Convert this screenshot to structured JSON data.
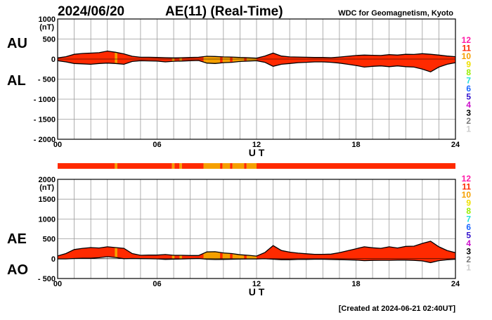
{
  "header": {
    "date": "2024/06/20",
    "title": "AE(11) (Real-Time)",
    "source": "WDC for Geomagnetism, Kyoto"
  },
  "footer": {
    "created": "[Created at 2024-06-21 02:40UT]"
  },
  "colors": {
    "fill": "#ff2a00",
    "fill_warn": "#f5a000",
    "line": "#000000"
  },
  "legend": {
    "items": [
      {
        "label": "12",
        "color": "#ff1aa8"
      },
      {
        "label": "11",
        "color": "#ff2a00"
      },
      {
        "label": "10",
        "color": "#f5a000"
      },
      {
        "label": "9",
        "color": "#f0e000"
      },
      {
        "label": "8",
        "color": "#99ee00"
      },
      {
        "label": "7",
        "color": "#22dddd"
      },
      {
        "label": "6",
        "color": "#1a66ff"
      },
      {
        "label": "5",
        "color": "#3311cc"
      },
      {
        "label": "4",
        "color": "#cc11cc"
      },
      {
        "label": "3",
        "color": "#000000"
      },
      {
        "label": "2",
        "color": "#777777"
      },
      {
        "label": "1",
        "color": "#cccccc"
      }
    ]
  },
  "chart_data": [
    {
      "type": "area",
      "upper_label": "AU",
      "lower_label": "AL",
      "unit": "(nT)",
      "xlabel": "U T",
      "xlim": [
        0,
        24
      ],
      "ylim": [
        -2000,
        1000
      ],
      "xticks": [
        "00",
        "06",
        "12",
        "18",
        "24"
      ],
      "yticks": [
        "1000",
        "500",
        "0",
        "- 500",
        "- 1000",
        "- 1500",
        "- 2000"
      ],
      "x": [
        0,
        0.5,
        1,
        1.5,
        2,
        2.5,
        3,
        3.5,
        4,
        4.5,
        5,
        5.5,
        6,
        6.5,
        7,
        7.5,
        8,
        8.5,
        9,
        9.5,
        10,
        10.5,
        11,
        11.5,
        12,
        12.5,
        13,
        13.5,
        14,
        14.5,
        15,
        15.5,
        16,
        16.5,
        17,
        17.5,
        18,
        18.5,
        19,
        19.5,
        20,
        20.5,
        21,
        21.5,
        22,
        22.5,
        23,
        23.5,
        24
      ],
      "series": [
        {
          "name": "AU",
          "values": [
            30,
            60,
            120,
            140,
            150,
            160,
            200,
            170,
            130,
            70,
            45,
            45,
            40,
            35,
            30,
            35,
            40,
            45,
            70,
            65,
            55,
            50,
            40,
            35,
            25,
            75,
            150,
            75,
            55,
            50,
            45,
            40,
            40,
            35,
            50,
            70,
            90,
            100,
            95,
            90,
            110,
            100,
            120,
            115,
            135,
            120,
            100,
            75,
            60
          ]
        },
        {
          "name": "AL",
          "values": [
            -40,
            -70,
            -110,
            -120,
            -130,
            -110,
            -100,
            -110,
            -130,
            -60,
            -40,
            -45,
            -50,
            -70,
            -55,
            -50,
            -40,
            -35,
            -100,
            -110,
            -90,
            -80,
            -60,
            -50,
            -40,
            -80,
            -180,
            -130,
            -110,
            -90,
            -80,
            -70,
            -70,
            -80,
            -100,
            -130,
            -160,
            -200,
            -180,
            -170,
            -190,
            -170,
            -190,
            -200,
            -250,
            -320,
            -200,
            -130,
            -90
          ]
        }
      ]
    },
    {
      "type": "area",
      "upper_label": "AE",
      "lower_label": "AO",
      "unit": "(nT)",
      "xlabel": "U T",
      "xlim": [
        0,
        24
      ],
      "ylim": [
        -500,
        2000
      ],
      "xticks": [
        "00",
        "06",
        "12",
        "18",
        "24"
      ],
      "yticks": [
        "2000",
        "1500",
        "1000",
        "500",
        "0",
        "- 500"
      ],
      "x": [
        0,
        0.5,
        1,
        1.5,
        2,
        2.5,
        3,
        3.5,
        4,
        4.5,
        5,
        5.5,
        6,
        6.5,
        7,
        7.5,
        8,
        8.5,
        9,
        9.5,
        10,
        10.5,
        11,
        11.5,
        12,
        12.5,
        13,
        13.5,
        14,
        14.5,
        15,
        15.5,
        16,
        16.5,
        17,
        17.5,
        18,
        18.5,
        19,
        19.5,
        20,
        20.5,
        21,
        21.5,
        22,
        22.5,
        23,
        23.5,
        24
      ],
      "series": [
        {
          "name": "AE",
          "values": [
            70,
            130,
            230,
            260,
            280,
            270,
            300,
            280,
            260,
            130,
            85,
            90,
            90,
            105,
            85,
            85,
            80,
            80,
            170,
            175,
            145,
            130,
            100,
            85,
            65,
            155,
            330,
            205,
            165,
            140,
            125,
            110,
            110,
            115,
            150,
            200,
            250,
            300,
            275,
            260,
            300,
            270,
            310,
            315,
            385,
            440,
            300,
            205,
            150
          ]
        },
        {
          "name": "AO",
          "values": [
            -5,
            -5,
            5,
            10,
            10,
            25,
            50,
            30,
            0,
            5,
            2,
            0,
            -5,
            -17,
            -12,
            -7,
            0,
            5,
            -15,
            -22,
            -17,
            -15,
            -10,
            -7,
            -7,
            -2,
            -15,
            -27,
            -27,
            -20,
            -17,
            -15,
            -15,
            -22,
            -25,
            -30,
            -35,
            -50,
            -42,
            -40,
            -40,
            -35,
            -35,
            -42,
            -57,
            -100,
            -50,
            -27,
            -15
          ]
        }
      ]
    }
  ],
  "station_bar": {
    "segments": [
      {
        "from": 0,
        "to": 3.45,
        "level": 11
      },
      {
        "from": 3.45,
        "to": 3.6,
        "level": 10
      },
      {
        "from": 3.6,
        "to": 6.9,
        "level": 11
      },
      {
        "from": 6.9,
        "to": 7.05,
        "level": 10
      },
      {
        "from": 7.05,
        "to": 7.35,
        "level": 11
      },
      {
        "from": 7.35,
        "to": 7.5,
        "level": 10
      },
      {
        "from": 7.5,
        "to": 8.8,
        "level": 11
      },
      {
        "from": 8.8,
        "to": 9.8,
        "level": 10
      },
      {
        "from": 9.8,
        "to": 9.95,
        "level": 11
      },
      {
        "from": 9.95,
        "to": 10.4,
        "level": 10
      },
      {
        "from": 10.4,
        "to": 10.55,
        "level": 11
      },
      {
        "from": 10.55,
        "to": 11.25,
        "level": 10
      },
      {
        "from": 11.25,
        "to": 11.4,
        "level": 11
      },
      {
        "from": 11.4,
        "to": 12.0,
        "level": 10
      },
      {
        "from": 12.0,
        "to": 24,
        "level": 11
      }
    ]
  }
}
